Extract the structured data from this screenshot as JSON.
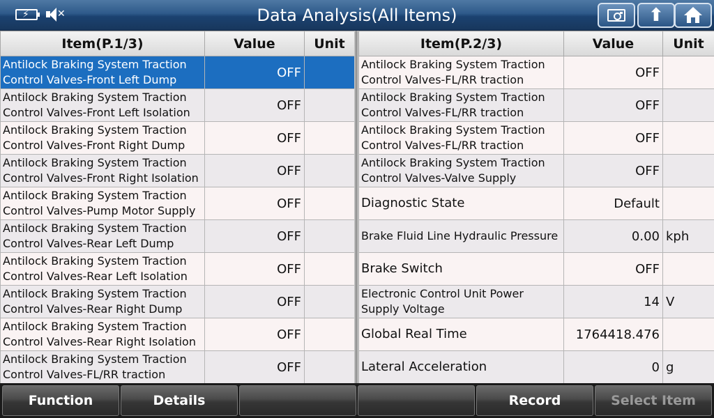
{
  "header": {
    "title": "Data Analysis(All Items)"
  },
  "left_table": {
    "headers": {
      "item": "Item(P.1/3)",
      "value": "Value",
      "unit": "Unit"
    },
    "rows": [
      {
        "item": "Antilock Braking System Traction Control Valves-Front Left Dump",
        "value": "OFF",
        "unit": ""
      },
      {
        "item": "Antilock Braking System Traction Control Valves-Front Left Isolation",
        "value": "OFF",
        "unit": ""
      },
      {
        "item": "Antilock Braking System Traction Control Valves-Front Right Dump",
        "value": "OFF",
        "unit": ""
      },
      {
        "item": "Antilock Braking System Traction Control Valves-Front Right Isolation",
        "value": "OFF",
        "unit": ""
      },
      {
        "item": "Antilock Braking System Traction Control Valves-Pump Motor Supply",
        "value": "OFF",
        "unit": ""
      },
      {
        "item": "Antilock Braking System Traction Control Valves-Rear Left Dump",
        "value": "OFF",
        "unit": ""
      },
      {
        "item": "Antilock Braking System Traction Control Valves-Rear Left Isolation",
        "value": "OFF",
        "unit": ""
      },
      {
        "item": "Antilock Braking System Traction Control Valves-Rear Right Dump",
        "value": "OFF",
        "unit": ""
      },
      {
        "item": "Antilock Braking System Traction Control Valves-Rear Right Isolation",
        "value": "OFF",
        "unit": ""
      },
      {
        "item": "Antilock Braking System Traction Control Valves-FL/RR traction",
        "value": "OFF",
        "unit": ""
      }
    ]
  },
  "right_table": {
    "headers": {
      "item": "Item(P.2/3)",
      "value": "Value",
      "unit": "Unit"
    },
    "rows": [
      {
        "item": "Antilock Braking System Traction Control Valves-FL/RR traction",
        "value": "OFF",
        "unit": ""
      },
      {
        "item": "Antilock Braking System Traction Control Valves-FL/RR traction",
        "value": "OFF",
        "unit": ""
      },
      {
        "item": "Antilock Braking System Traction Control Valves-FL/RR traction",
        "value": "OFF",
        "unit": ""
      },
      {
        "item": "Antilock Braking System Traction Control Valves-Valve Supply",
        "value": "OFF",
        "unit": ""
      },
      {
        "item": "Diagnostic State",
        "value": "Default",
        "unit": ""
      },
      {
        "item": "Brake Fluid Line Hydraulic Pressure",
        "value": "0.00",
        "unit": "kph"
      },
      {
        "item": "Brake Switch",
        "value": "OFF",
        "unit": ""
      },
      {
        "item": "Electronic Control Unit Power Supply Voltage",
        "value": "14",
        "unit": "V"
      },
      {
        "item": "Global Real Time",
        "value": "1764418.476",
        "unit": ""
      },
      {
        "item": "Lateral Acceleration",
        "value": "0",
        "unit": "g"
      }
    ]
  },
  "footer": {
    "buttons": [
      {
        "label": "Function",
        "enabled": true
      },
      {
        "label": "Details",
        "enabled": true
      },
      {
        "label": "",
        "enabled": true
      },
      {
        "label": "",
        "enabled": true
      },
      {
        "label": "Record",
        "enabled": true
      },
      {
        "label": "Select Item",
        "enabled": false
      }
    ]
  },
  "icons": {
    "status": [
      "battery-charging-icon",
      "speaker-muted-icon"
    ],
    "header_buttons": [
      "record-view-icon",
      "back-arrow-icon",
      "home-icon"
    ]
  },
  "colors": {
    "header": "#2e5a8a",
    "selected_row": "#1c6ec0",
    "footer": "#3a3a3a"
  }
}
